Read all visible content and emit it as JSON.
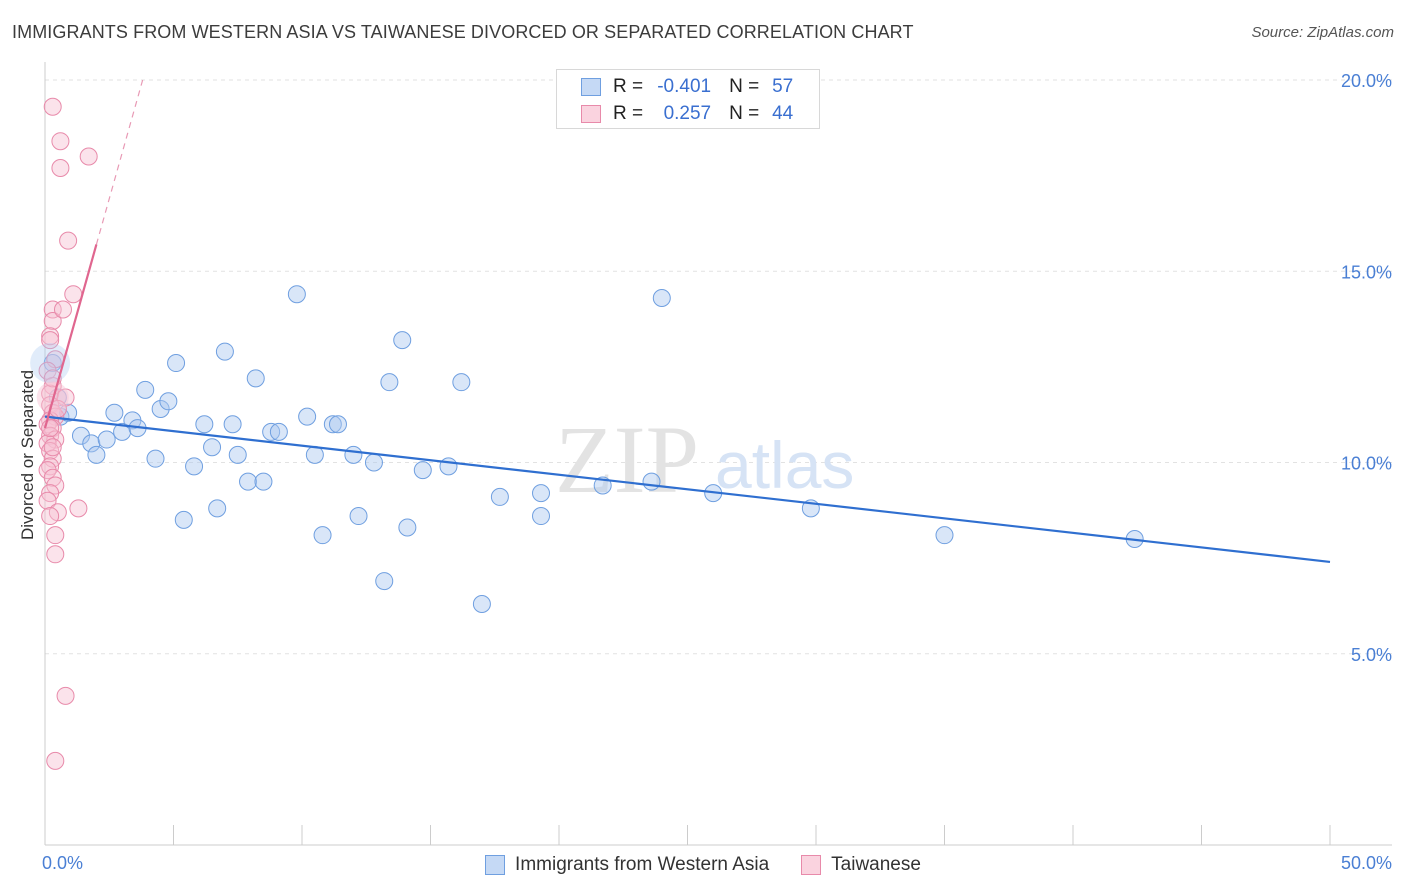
{
  "header": {
    "title": "IMMIGRANTS FROM WESTERN ASIA VS TAIWANESE DIVORCED OR SEPARATED CORRELATION CHART",
    "source": "Source: ZipAtlas.com"
  },
  "stats": [
    {
      "r_label": "R =",
      "r_value": "-0.401",
      "n_label": "N =",
      "n_value": "57",
      "color": "#aac8f0",
      "border": "#6f9fe0"
    },
    {
      "r_label": "R =",
      "r_value": "0.257",
      "n_label": "N =",
      "n_value": "44",
      "color": "#f7c0d2",
      "border": "#e88aaa"
    }
  ],
  "legend": [
    {
      "label": "Immigrants from Western Asia",
      "color": "#c5d9f5",
      "border": "#6f9fe0"
    },
    {
      "label": "Taiwanese",
      "color": "#fad3df",
      "border": "#e88aaa"
    }
  ],
  "watermark": {
    "zip": "ZIP",
    "atlas": "atlas"
  },
  "chart_data": {
    "type": "scatter",
    "title": "IMMIGRANTS FROM WESTERN ASIA VS TAIWANESE DIVORCED OR SEPARATED CORRELATION CHART",
    "xlabel": "",
    "ylabel": "Divorced or Separated",
    "xlim": [
      0,
      50
    ],
    "ylim": [
      0,
      20.5
    ],
    "x_tick_labels": [
      {
        "value": 0,
        "label": "0.0%"
      },
      {
        "value": 50,
        "label": "50.0%"
      }
    ],
    "y_tick_labels": [
      {
        "value": 5,
        "label": "5.0%"
      },
      {
        "value": 10,
        "label": "10.0%"
      },
      {
        "value": 15,
        "label": "15.0%"
      },
      {
        "value": 20,
        "label": "20.0%"
      }
    ],
    "series": [
      {
        "name": "Immigrants from Western Asia",
        "color": "#6f9fe0",
        "fill": "rgba(170,200,240,0.45)",
        "points": [
          [
            0.3,
            12.6
          ],
          [
            0.5,
            11.7
          ],
          [
            0.6,
            11.2
          ],
          [
            0.9,
            11.3
          ],
          [
            1.4,
            10.7
          ],
          [
            1.8,
            10.5
          ],
          [
            2.0,
            10.2
          ],
          [
            2.4,
            10.6
          ],
          [
            2.7,
            11.3
          ],
          [
            3.0,
            10.8
          ],
          [
            3.4,
            11.1
          ],
          [
            3.6,
            10.9
          ],
          [
            3.9,
            11.9
          ],
          [
            4.3,
            10.1
          ],
          [
            4.5,
            11.4
          ],
          [
            4.8,
            11.6
          ],
          [
            5.1,
            12.6
          ],
          [
            5.4,
            8.5
          ],
          [
            5.8,
            9.9
          ],
          [
            6.2,
            11.0
          ],
          [
            6.5,
            10.4
          ],
          [
            6.7,
            8.8
          ],
          [
            7.0,
            12.9
          ],
          [
            7.3,
            11.0
          ],
          [
            7.5,
            10.2
          ],
          [
            7.9,
            9.5
          ],
          [
            8.2,
            12.2
          ],
          [
            8.5,
            9.5
          ],
          [
            8.8,
            10.8
          ],
          [
            9.1,
            10.8
          ],
          [
            9.8,
            14.4
          ],
          [
            10.2,
            11.2
          ],
          [
            10.5,
            10.2
          ],
          [
            10.8,
            8.1
          ],
          [
            11.2,
            11.0
          ],
          [
            11.4,
            11.0
          ],
          [
            12.0,
            10.2
          ],
          [
            12.2,
            8.6
          ],
          [
            12.8,
            10.0
          ],
          [
            13.2,
            6.9
          ],
          [
            13.4,
            12.1
          ],
          [
            13.9,
            13.2
          ],
          [
            14.1,
            8.3
          ],
          [
            14.7,
            9.8
          ],
          [
            15.7,
            9.9
          ],
          [
            16.2,
            12.1
          ],
          [
            17.0,
            6.3
          ],
          [
            17.7,
            9.1
          ],
          [
            19.3,
            9.2
          ],
          [
            19.3,
            8.6
          ],
          [
            21.7,
            9.4
          ],
          [
            23.6,
            9.5
          ],
          [
            24.0,
            14.3
          ],
          [
            26.0,
            9.2
          ],
          [
            29.8,
            8.8
          ],
          [
            35.0,
            8.1
          ],
          [
            42.4,
            8.0
          ]
        ],
        "trend": {
          "x0": 0,
          "y0": 11.2,
          "x1": 50,
          "y1": 7.4
        }
      },
      {
        "name": "Taiwanese",
        "color": "#e88aaa",
        "fill": "rgba(247,192,210,0.45)",
        "points": [
          [
            0.3,
            19.3
          ],
          [
            0.6,
            18.4
          ],
          [
            1.7,
            18.0
          ],
          [
            0.6,
            17.7
          ],
          [
            0.9,
            15.8
          ],
          [
            1.1,
            14.4
          ],
          [
            0.3,
            14.0
          ],
          [
            0.3,
            13.7
          ],
          [
            0.7,
            14.0
          ],
          [
            0.2,
            13.3
          ],
          [
            0.2,
            13.2
          ],
          [
            0.4,
            12.7
          ],
          [
            0.1,
            12.4
          ],
          [
            0.3,
            12.0
          ],
          [
            0.2,
            11.8
          ],
          [
            0.8,
            11.7
          ],
          [
            0.2,
            11.5
          ],
          [
            0.3,
            11.3
          ],
          [
            0.4,
            11.2
          ],
          [
            0.2,
            11.1
          ],
          [
            0.1,
            11.0
          ],
          [
            0.3,
            10.9
          ],
          [
            0.2,
            10.7
          ],
          [
            0.4,
            10.6
          ],
          [
            0.1,
            10.5
          ],
          [
            0.2,
            10.3
          ],
          [
            0.3,
            10.1
          ],
          [
            0.2,
            9.9
          ],
          [
            0.1,
            9.8
          ],
          [
            0.3,
            9.6
          ],
          [
            0.4,
            9.4
          ],
          [
            0.2,
            9.2
          ],
          [
            0.1,
            9.0
          ],
          [
            1.3,
            8.8
          ],
          [
            0.5,
            8.7
          ],
          [
            0.2,
            8.6
          ],
          [
            0.4,
            8.1
          ],
          [
            0.4,
            7.6
          ],
          [
            0.8,
            3.9
          ],
          [
            0.4,
            2.2
          ],
          [
            0.3,
            12.2
          ],
          [
            0.5,
            11.4
          ],
          [
            0.2,
            10.9
          ],
          [
            0.3,
            10.4
          ]
        ],
        "trend_solid": {
          "x0": 0,
          "y0": 10.9,
          "x1": 2.0,
          "y1": 15.7
        },
        "trend_dashed": {
          "x0": 2.0,
          "y0": 15.7,
          "x1": 3.8,
          "y1": 20.0
        }
      }
    ]
  }
}
